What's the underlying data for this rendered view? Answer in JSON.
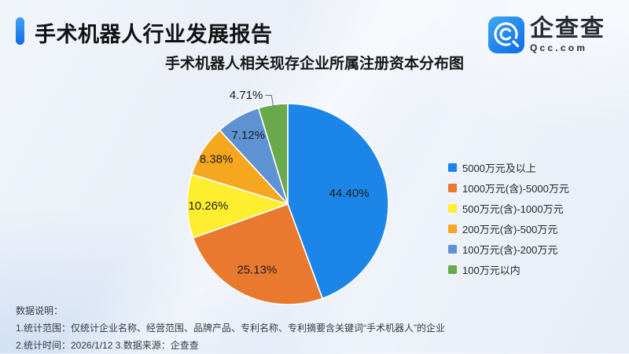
{
  "page": {
    "report_title": "手术机器人行业发展报告"
  },
  "logo": {
    "name": "企查查",
    "domain": "Qcc.com",
    "brand_color": "#1373e8"
  },
  "chart_data": {
    "type": "pie",
    "title": "手术机器人相关现存企业所属注册资本分布图",
    "legend_position": "right",
    "label_format": "percent",
    "slices": [
      {
        "label": "5000万元及以上",
        "value": 44.4,
        "display": "44.40%",
        "color": "#1b86e8"
      },
      {
        "label": "1000万元(含)-5000万元",
        "value": 25.13,
        "display": "25.13%",
        "color": "#e8792f"
      },
      {
        "label": "500万元(含)-1000万元",
        "value": 10.26,
        "display": "10.26%",
        "color": "#fdee30"
      },
      {
        "label": "200万元(含)-500万元",
        "value": 8.38,
        "display": "8.38%",
        "color": "#f5a71f"
      },
      {
        "label": "100万元(含)-200万元",
        "value": 7.12,
        "display": "7.12%",
        "color": "#5e92d3"
      },
      {
        "label": "100万元以内",
        "value": 4.71,
        "display": "4.71%",
        "color": "#6aa84c"
      }
    ]
  },
  "footnotes": {
    "heading": "数据说明：",
    "line1": "1.统计范围：仅统计企业名称、经营范围、品牌产品、专利名称、专利摘要含关键词“手术机器人”的企业",
    "line2": "2.统计时间：2026/1/12  3.数据来源：企查查"
  }
}
